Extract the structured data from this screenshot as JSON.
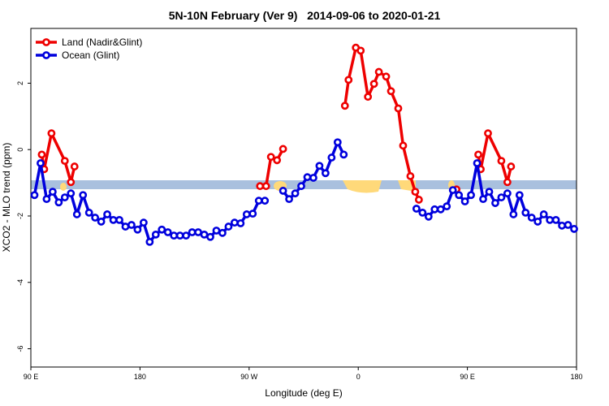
{
  "chart_data": {
    "type": "line",
    "title": "5N-10N February (Ver 9)   2014-09-06 to 2020-01-21",
    "x_label": "Longitude (deg E)",
    "y_label": "XCO2 - MLO trend (ppm)",
    "xlim": [
      90,
      540
    ],
    "ylim": [
      -6.55,
      3.65
    ],
    "xticks": [
      {
        "value": 90,
        "label": "90 E"
      },
      {
        "value": 180,
        "label": "180"
      },
      {
        "value": 270,
        "label": "90 W"
      },
      {
        "value": 360,
        "label": "0"
      },
      {
        "value": 450,
        "label": "90 E"
      },
      {
        "value": 540,
        "label": "180"
      }
    ],
    "yticks": [
      -6,
      -4,
      -2,
      0,
      2
    ],
    "legend": "top-left",
    "series": [
      {
        "name": "Land (Nadir&Glint)",
        "color": "#ee0000",
        "x": [
          99,
          101,
          107,
          118,
          123,
          126,
          200,
          279,
          284,
          288,
          293,
          298,
          320,
          349,
          352,
          358,
          362,
          368,
          373,
          377,
          383,
          387,
          393,
          397,
          403,
          407,
          410,
          425,
          441,
          450,
          459,
          461,
          467,
          478,
          483,
          486
        ],
        "values": [
          -0.15,
          -0.59,
          0.49,
          -0.34,
          -0.98,
          -0.51,
          null,
          -1.1,
          -1.1,
          -0.22,
          -0.32,
          0.02,
          null,
          1.32,
          2.1,
          3.07,
          2.98,
          1.59,
          1.98,
          2.34,
          2.2,
          1.76,
          1.24,
          0.12,
          -0.8,
          -1.27,
          -1.51,
          null,
          -1.2,
          null,
          -0.15,
          -0.59,
          0.49,
          -0.34,
          -0.98,
          -0.51
        ]
      },
      {
        "name": "Ocean (Glint)",
        "color": "#0000dd",
        "x": [
          93,
          98,
          103,
          108,
          113,
          118,
          123,
          128,
          133,
          138,
          143,
          148,
          153,
          158,
          163,
          168,
          173,
          178,
          183,
          188,
          193,
          198,
          203,
          208,
          213,
          218,
          223,
          228,
          233,
          238,
          243,
          248,
          253,
          258,
          263,
          268,
          273,
          278,
          283,
          288,
          293,
          298,
          303,
          308,
          313,
          318,
          323,
          328,
          333,
          338,
          343,
          348,
          353,
          358,
          363,
          368,
          373,
          378,
          383,
          388,
          393,
          398,
          403,
          408,
          413,
          418,
          423,
          428,
          433,
          438,
          443,
          448,
          453,
          458,
          463,
          468,
          473,
          478,
          483,
          488,
          493,
          498,
          503,
          508,
          513,
          518,
          523,
          528,
          533,
          538
        ],
        "values": [
          -1.37,
          -0.41,
          -1.49,
          -1.27,
          -1.59,
          -1.44,
          -1.32,
          -1.95,
          -1.37,
          -1.9,
          -2.05,
          -2.17,
          -1.95,
          -2.12,
          -2.12,
          -2.32,
          -2.27,
          -2.41,
          -2.2,
          -2.78,
          -2.56,
          -2.41,
          -2.49,
          -2.59,
          -2.59,
          -2.59,
          -2.49,
          -2.49,
          -2.56,
          -2.63,
          -2.44,
          -2.51,
          -2.32,
          -2.2,
          -2.22,
          -1.95,
          -1.93,
          -1.54,
          -1.54,
          null,
          null,
          -1.24,
          -1.49,
          -1.32,
          -1.1,
          -0.83,
          -0.85,
          -0.49,
          -0.71,
          -0.24,
          0.22,
          -0.15,
          null,
          null,
          null,
          null,
          null,
          null,
          null,
          null,
          null,
          null,
          null,
          -1.78,
          -1.9,
          -2.02,
          -1.8,
          -1.8,
          -1.71,
          -1.22,
          -1.37,
          -1.56,
          -1.37,
          -0.41,
          -1.49,
          -1.27,
          -1.61,
          -1.44,
          -1.32,
          -1.95,
          -1.37,
          -1.9,
          -2.05,
          -2.17,
          -1.95,
          -2.12,
          -2.12,
          -2.29,
          -2.27,
          -2.39
        ]
      }
    ]
  }
}
